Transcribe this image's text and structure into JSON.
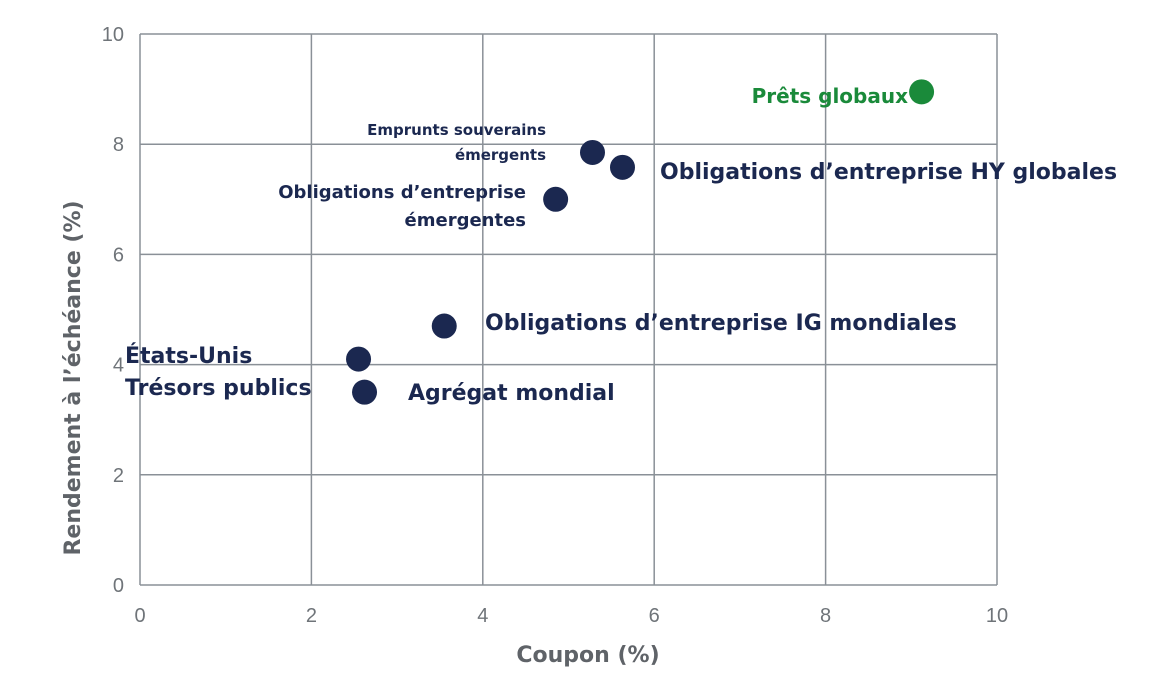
{
  "chart_data": {
    "type": "scatter",
    "xlabel": "Coupon (%)",
    "ylabel": "Rendement à l’échéance (%)",
    "xlim": [
      0,
      10
    ],
    "ylim": [
      0,
      10
    ],
    "xticks": [
      "0",
      "2",
      "4",
      "6",
      "8",
      "10"
    ],
    "yticks": [
      "0",
      "2",
      "4",
      "6",
      "8",
      "10"
    ],
    "grid": true,
    "colors": {
      "main": "#1b2850",
      "highlight": "#1a8a3a",
      "grid": "#8a9097",
      "tick": "#6f7479"
    },
    "points": [
      {
        "x": 2.55,
        "y": 4.1,
        "lines": [
          "États-Unis",
          "Trésors publics"
        ],
        "color": "#1b2850"
      },
      {
        "x": 2.62,
        "y": 3.5,
        "lines": [
          "Agrégat mondial"
        ],
        "color": "#1b2850"
      },
      {
        "x": 3.55,
        "y": 4.7,
        "lines": [
          "Obligations d’entreprise IG mondiales"
        ],
        "color": "#1b2850"
      },
      {
        "x": 4.85,
        "y": 7.0,
        "lines": [
          "Obligations d’entreprise",
          "émergentes"
        ],
        "color": "#1b2850"
      },
      {
        "x": 5.28,
        "y": 7.85,
        "lines": [
          "Emprunts souverains",
          "émergents"
        ],
        "color": "#1b2850"
      },
      {
        "x": 5.63,
        "y": 7.58,
        "lines": [
          "Obligations d’entreprise HY globales"
        ],
        "color": "#1b2850"
      },
      {
        "x": 9.12,
        "y": 8.95,
        "lines": [
          "Prêts globaux"
        ],
        "color": "#1a8a3a"
      }
    ]
  }
}
